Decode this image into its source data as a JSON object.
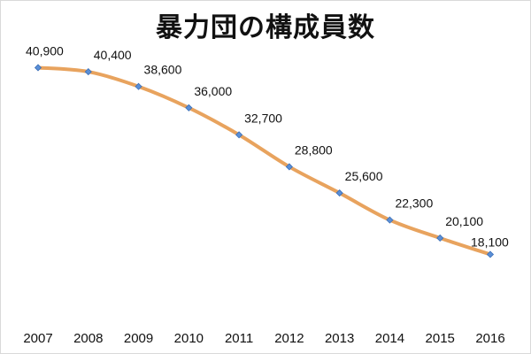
{
  "chart_data": {
    "type": "line",
    "title": "暴力団の構成員数",
    "categories": [
      "2007",
      "2008",
      "2009",
      "2010",
      "2011",
      "2012",
      "2013",
      "2014",
      "2015",
      "2016"
    ],
    "series": [
      {
        "values": [
          40900,
          40400,
          38600,
          36000,
          32700,
          28800,
          25600,
          22300,
          20100,
          18100
        ],
        "labels": [
          "40,900",
          "40,400",
          "38,600",
          "36,000",
          "32,700",
          "28,800",
          "25,600",
          "22,300",
          "20,100",
          "18,100"
        ]
      }
    ],
    "ylim": [
      0,
      47000
    ],
    "grid": false,
    "line_color": "#e8a35e",
    "marker_color": "#5b8fd6",
    "marker": "diamond"
  }
}
